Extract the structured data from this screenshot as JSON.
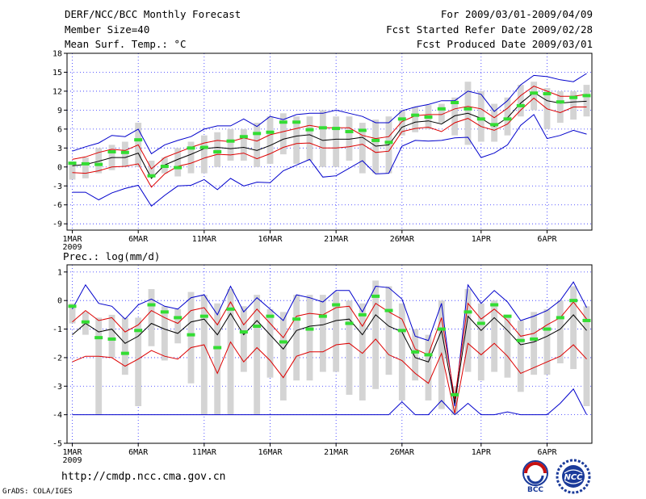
{
  "header": {
    "title": "DERF/NCC/BCC Monthly Forecast",
    "member_size": "Member Size=40",
    "variable": "Mean Surf. Temp.: °C",
    "period": "For 2009/03/01-2009/04/09",
    "started": "Fcst Started Refer Date 2009/02/28",
    "produced": "Fcst Produced Date 2009/03/01"
  },
  "footer": {
    "url": "http://cmdp.ncc.cma.gov.cn",
    "credit": "GrADS: COLA/IGES",
    "logo1_text": "BCC",
    "logo2_text": "NCC"
  },
  "colors": {
    "outer": "#0000cc",
    "inner": "#dd0000",
    "mean": "#000000",
    "marker": "#33dd33",
    "bar": "#d4d4d4",
    "grid": "#2a2aff"
  },
  "chart_data": [
    {
      "type": "line",
      "title": "Mean Surf. Temp.: °C",
      "x": [
        1,
        2,
        3,
        4,
        5,
        6,
        7,
        8,
        9,
        10,
        11,
        12,
        13,
        14,
        15,
        16,
        17,
        18,
        19,
        20,
        21,
        22,
        23,
        24,
        25,
        26,
        27,
        28,
        29,
        30,
        31,
        32,
        33,
        34,
        35,
        36,
        37,
        38,
        39,
        40
      ],
      "x_tick_labels": [
        "1MAR",
        "6MAR",
        "11MAR",
        "16MAR",
        "21MAR",
        "26MAR",
        "1APR",
        "6APR"
      ],
      "x_tick_positions": [
        1,
        6,
        11,
        16,
        21,
        26,
        32,
        37
      ],
      "x_sublabel": "2009",
      "xlim": [
        0.6,
        40.4
      ],
      "ylim": [
        -10,
        18
      ],
      "y_ticks": [
        -9,
        -6,
        -3,
        0,
        3,
        6,
        9,
        12,
        15,
        18
      ],
      "grid": "dotted",
      "series": [
        {
          "name": "upper outer",
          "color": "#0000cc",
          "values": [
            2.5,
            3.2,
            3.8,
            5,
            4.8,
            6,
            2.1,
            3.5,
            4.2,
            4.8,
            6,
            6.5,
            6.5,
            7.6,
            6.4,
            8,
            7.5,
            8.3,
            8.5,
            8.5,
            9,
            8.5,
            8,
            7,
            7,
            8.9,
            9.5,
            9.9,
            10.5,
            10.5,
            12,
            11.5,
            8.8,
            10.5,
            13,
            14.5,
            14.3,
            13.8,
            13.5,
            14.8
          ]
        },
        {
          "name": "upper inner",
          "color": "#dd0000",
          "values": [
            1.2,
            1.6,
            2.3,
            2.8,
            2.6,
            3.5,
            -0.3,
            1.5,
            2.3,
            3.1,
            3.8,
            4.2,
            4,
            4.6,
            4.1,
            5.1,
            5.6,
            6.1,
            6.6,
            6.2,
            6.2,
            6.2,
            5,
            4.5,
            4.8,
            7.2,
            8.1,
            8.3,
            8.3,
            9.2,
            9.6,
            9.2,
            7.8,
            9.3,
            11.3,
            12.8,
            12,
            11.2,
            11.2,
            11.5
          ]
        },
        {
          "name": "ensemble mean",
          "color": "#000000",
          "values": [
            0.2,
            0.4,
            0.9,
            1.5,
            1.5,
            2.2,
            -1.8,
            0.3,
            1.2,
            2,
            2.9,
            3.1,
            2.9,
            3.1,
            2.6,
            3.4,
            4.4,
            4.9,
            5.1,
            4.2,
            4.4,
            4.4,
            4.7,
            3.3,
            3.5,
            6.3,
            7.1,
            7.3,
            6.8,
            8.1,
            8.5,
            7.7,
            6.4,
            7.8,
            10.1,
            11.8,
            10.5,
            10.1,
            10.3,
            10.4
          ]
        },
        {
          "name": "lower inner",
          "color": "#dd0000",
          "values": [
            -0.9,
            -1,
            -0.6,
            0,
            0.1,
            0.5,
            -3.2,
            -1.1,
            0.1,
            0.6,
            1.4,
            2,
            1.9,
            2.2,
            1.3,
            2.1,
            3.1,
            3.7,
            3.8,
            3,
            3,
            3.2,
            3.6,
            2.3,
            2.5,
            5.6,
            6.1,
            6.3,
            5.6,
            7,
            7.7,
            6.4,
            5.8,
            6.8,
            9,
            10.9,
            9.2,
            8.6,
            9.5,
            9.5
          ]
        },
        {
          "name": "lower outer",
          "color": "#0000cc",
          "values": [
            -4,
            -4,
            -5.2,
            -4.1,
            -3.4,
            -2.9,
            -6.2,
            -4.5,
            -3,
            -2.9,
            -2,
            -3.6,
            -1.8,
            -3,
            -2.4,
            -2.5,
            -0.6,
            0.3,
            1.2,
            -1.6,
            -1.4,
            -0.2,
            1,
            -1.1,
            -1,
            3.3,
            4.2,
            4.1,
            4.2,
            4.6,
            4.7,
            1.5,
            2.2,
            3.5,
            6.6,
            8.3,
            4.5,
            5,
            5.8,
            5.2
          ]
        }
      ],
      "bars": {
        "name": "member spread",
        "color": "#d4d4d4",
        "low": [
          -2,
          -1.8,
          -1,
          -0.5,
          0,
          0,
          -1.5,
          -1,
          -1.5,
          -1,
          -1,
          0,
          1,
          1,
          0,
          0.5,
          2,
          0.5,
          1,
          0,
          0,
          1,
          -1,
          -1,
          -1,
          5,
          5.5,
          6,
          7,
          5,
          3.5,
          4,
          4,
          5,
          8,
          9,
          6,
          7,
          7.5,
          8
        ],
        "high": [
          0.5,
          1.5,
          3,
          3.5,
          4,
          7,
          1,
          1.5,
          3,
          4,
          5,
          5.5,
          6,
          6,
          7,
          8,
          8.5,
          8,
          8,
          9,
          8,
          8,
          7,
          7.5,
          8,
          9,
          9.5,
          9.8,
          10,
          11,
          13.5,
          12,
          10,
          11,
          13,
          13.5,
          12.5,
          12,
          12,
          13
        ]
      },
      "markers": {
        "name": "observation",
        "color": "#33dd33",
        "values": [
          0.6,
          0.5,
          0.4,
          2.4,
          2.3,
          4.3,
          -1.4,
          0.1,
          -0.1,
          3,
          3.1,
          2.4,
          4.1,
          4.8,
          5.3,
          5.5,
          7.1,
          7.1,
          5.9,
          6.2,
          6.1,
          5.6,
          5.8,
          4.2,
          3.9,
          7.6,
          8.2,
          7.9,
          9.2,
          10.2,
          9.2,
          7.6,
          6.7,
          7.6,
          9.7,
          11.7,
          11.6,
          10.3,
          11,
          11.3
        ]
      }
    },
    {
      "type": "line",
      "title": "Prec.: log(mm/d)",
      "x": [
        1,
        2,
        3,
        4,
        5,
        6,
        7,
        8,
        9,
        10,
        11,
        12,
        13,
        14,
        15,
        16,
        17,
        18,
        19,
        20,
        21,
        22,
        23,
        24,
        25,
        26,
        27,
        28,
        29,
        30,
        31,
        32,
        33,
        34,
        35,
        36,
        37,
        38,
        39,
        40
      ],
      "x_tick_labels": [
        "1MAR",
        "6MAR",
        "11MAR",
        "16MAR",
        "21MAR",
        "26MAR",
        "1APR",
        "6APR"
      ],
      "x_tick_positions": [
        1,
        6,
        11,
        16,
        21,
        26,
        32,
        37
      ],
      "x_sublabel": "2009",
      "xlim": [
        0.6,
        40.4
      ],
      "ylim": [
        -5,
        1.25
      ],
      "y_ticks": [
        -5,
        -4,
        -3,
        -2,
        -1,
        0,
        1
      ],
      "grid": "dotted",
      "series": [
        {
          "name": "upper outer",
          "color": "#0000cc",
          "values": [
            -0.3,
            0.55,
            -0.1,
            -0.2,
            -0.65,
            -0.15,
            0.05,
            -0.2,
            -0.3,
            0.1,
            0.2,
            -0.5,
            0.5,
            -0.4,
            0.1,
            -0.3,
            -0.7,
            0.2,
            0.1,
            -0.05,
            0.35,
            0.35,
            -0.4,
            0.5,
            0.45,
            0.05,
            -1.25,
            -1.4,
            -0.1,
            -3.7,
            0.55,
            -0.1,
            0.35,
            -0.05,
            -0.7,
            -0.55,
            -0.35,
            0,
            0.65,
            -0.25
          ]
        },
        {
          "name": "upper inner",
          "color": "#dd0000",
          "values": [
            -0.75,
            -0.35,
            -0.7,
            -0.6,
            -1.1,
            -0.85,
            -0.35,
            -0.6,
            -0.8,
            -0.35,
            -0.25,
            -0.85,
            -0.05,
            -0.85,
            -0.3,
            -0.8,
            -1.3,
            -0.55,
            -0.45,
            -0.5,
            -0.25,
            -0.2,
            -0.9,
            -0.1,
            -0.4,
            -0.65,
            -1.7,
            -1.9,
            -0.6,
            -3.45,
            -0.1,
            -0.65,
            -0.3,
            -0.7,
            -1.25,
            -1.15,
            -0.85,
            -0.6,
            -0.05,
            -0.65
          ]
        },
        {
          "name": "ensemble mean",
          "color": "#000000",
          "values": [
            -1.2,
            -0.8,
            -1.1,
            -1,
            -1.5,
            -1.25,
            -0.8,
            -1,
            -1.15,
            -0.75,
            -0.65,
            -1.2,
            -0.45,
            -1.2,
            -0.7,
            -1.2,
            -1.7,
            -1.05,
            -0.9,
            -0.85,
            -0.7,
            -0.65,
            -1.2,
            -0.5,
            -0.9,
            -1.1,
            -2,
            -2.15,
            -1.05,
            -3.6,
            -0.55,
            -1.05,
            -0.6,
            -1.05,
            -1.55,
            -1.45,
            -1.25,
            -1,
            -0.5,
            -1.05
          ]
        },
        {
          "name": "lower inner",
          "color": "#dd0000",
          "values": [
            -2.15,
            -1.95,
            -1.95,
            -2,
            -2.3,
            -2.05,
            -1.75,
            -1.95,
            -2.05,
            -1.65,
            -1.55,
            -2.55,
            -1.45,
            -2.15,
            -1.65,
            -2.1,
            -2.7,
            -1.95,
            -1.8,
            -1.8,
            -1.55,
            -1.5,
            -1.85,
            -1.35,
            -1.9,
            -2.1,
            -2.55,
            -2.9,
            -1.85,
            -3.95,
            -1.5,
            -1.9,
            -1.5,
            -1.95,
            -2.55,
            -2.35,
            -2.15,
            -1.95,
            -1.55,
            -2.05
          ]
        },
        {
          "name": "lower outer",
          "color": "#0000cc",
          "values": [
            -4,
            -4,
            -4,
            -4,
            -4,
            -4,
            -4,
            -4,
            -4,
            -4,
            -4,
            -4,
            -4,
            -4,
            -4,
            -4,
            -4,
            -4,
            -4,
            -4,
            -4,
            -4,
            -4,
            -4,
            -4,
            -3.55,
            -4,
            -4,
            -3.5,
            -4,
            -3.6,
            -4,
            -4,
            -3.9,
            -4,
            -4,
            -4,
            -3.6,
            -3.1,
            -4
          ]
        }
      ],
      "bars": {
        "name": "member spread",
        "color": "#d4d4d4",
        "low": [
          -0.8,
          -1.2,
          -4,
          -2,
          -2.6,
          -3.7,
          -1.6,
          -2.1,
          -1.5,
          -2.9,
          -4,
          -4,
          -4,
          -2.5,
          -4,
          -2.7,
          -3.5,
          -2.8,
          -2.8,
          -2.5,
          -2.5,
          -3.3,
          -3.5,
          -3.1,
          -2.6,
          -3.5,
          -2.8,
          -3.5,
          -3.8,
          -4,
          -2.5,
          -2.8,
          -2.5,
          -2.7,
          -3.2,
          -2.6,
          -2.6,
          -2.2,
          -2.4,
          -3.7
        ],
        "high": [
          -0.1,
          -0.4,
          -0.6,
          -0.5,
          -0.6,
          -0.6,
          0.4,
          -0.2,
          -0.3,
          0.3,
          0.2,
          -0.1,
          0.4,
          -0.2,
          0.2,
          -0.3,
          -0.4,
          0.2,
          0.2,
          0.2,
          0.3,
          0,
          -0.1,
          0.7,
          0.5,
          -0.1,
          -1,
          -1.2,
          0,
          -3,
          0.4,
          -0.1,
          0,
          -0.5,
          -0.7,
          -0.4,
          -0.3,
          0,
          0.5,
          -0.2
        ]
      },
      "markers": {
        "name": "observation",
        "color": "#33dd33",
        "values": [
          -0.2,
          -0.75,
          -1.3,
          -1.35,
          -1.85,
          -1.05,
          -0.15,
          -0.4,
          -0.6,
          -1.2,
          -0.55,
          -1.65,
          -0.3,
          -1.1,
          -0.9,
          -0.55,
          -1.45,
          -0.65,
          -1,
          -0.55,
          -0.15,
          -0.8,
          -0.5,
          0.15,
          -0.35,
          -1.05,
          -1.8,
          -1.9,
          -1,
          -3.3,
          -0.4,
          -0.8,
          -0.15,
          -0.55,
          -1.4,
          -1.35,
          -1,
          -0.6,
          0,
          -0.7
        ]
      }
    }
  ]
}
